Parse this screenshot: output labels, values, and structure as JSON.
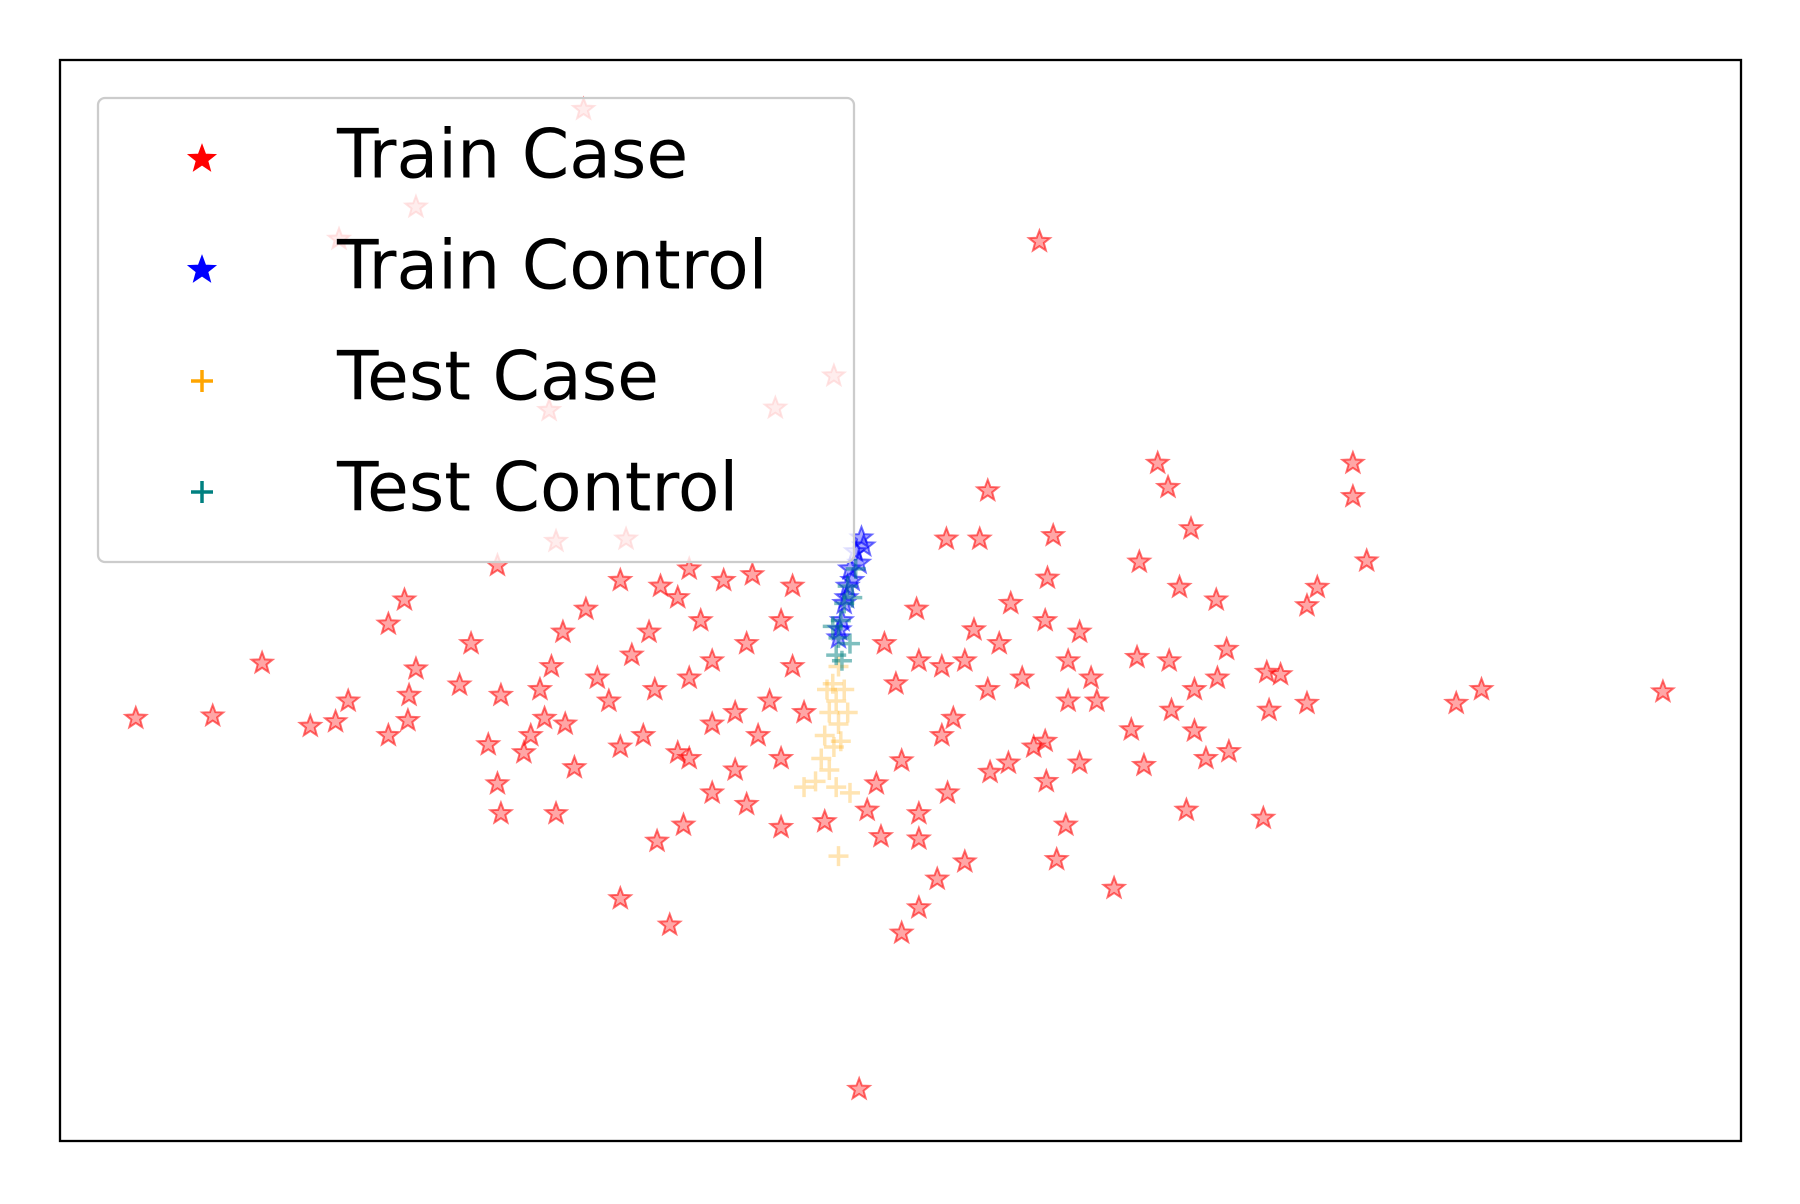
{
  "chart_data": {
    "type": "scatter",
    "xlim": [
      0,
      1464
    ],
    "ylim": [
      0,
      941
    ],
    "legend": "upper left",
    "series": [
      {
        "name": "Train Case",
        "color": "#ff0000",
        "marker": "star",
        "alpha": 0.35,
        "x": [
          456,
          310,
          243,
          853,
          674,
          623,
          426,
          956,
          1126,
          965,
          808,
          1126,
          985,
          865,
          772,
          801,
          493,
          432,
          381,
          940,
          1138,
          860,
          975,
          1095,
          1007,
          1086,
          300,
          286,
          176,
          66,
          133,
          218,
          240,
          251,
          286,
          303,
          304,
          310,
          348,
          358,
          384,
          373,
          381,
          384,
          404,
          410,
          432,
          422,
          440,
          448,
          428,
          438,
          458,
          488,
          523,
          548,
          578,
          603,
          638,
          628,
          598,
          568,
          548,
          518,
          498,
          478,
          488,
          508,
          538,
          548,
          568,
          588,
          608,
          628,
          648,
          638,
          618,
          588,
          568,
          598,
          628,
          666,
          703,
          715,
          748,
          748,
          788,
          764,
          748,
          733,
          531,
          488,
          520,
          543,
          918,
          868,
          876,
          859,
          810,
          826,
          888,
          944,
          981,
          1048,
          1018,
          998,
          988,
          968,
          933,
          903,
          878,
          848,
          858,
          808,
          788,
          768,
          796,
          828,
          858,
          888,
          878,
          898,
          938,
          966,
          1016,
          988,
          1008,
          1051,
          1063,
          1053,
          1086,
          1216,
          1238,
          1396,
          733,
          773,
          711,
          728,
          718,
          746,
          748,
          778,
          768,
          818,
          838,
          558,
          538,
          513,
          468,
          418,
          696
        ],
        "values": [
          898,
          813,
          785,
          783,
          666,
          638,
          636,
          590,
          590,
          569,
          566,
          561,
          533,
          527,
          524,
          524,
          524,
          522,
          501,
          504,
          505,
          490,
          482,
          482,
          471,
          466,
          471,
          450,
          416,
          368,
          370,
          361,
          365,
          383,
          353,
          366,
          388,
          411,
          397,
          433,
          388,
          345,
          311,
          285,
          338,
          353,
          285,
          368,
          363,
          325,
          413,
          443,
          463,
          488,
          483,
          498,
          488,
          493,
          483,
          453,
          433,
          418,
          403,
          393,
          423,
          383,
          343,
          353,
          338,
          333,
          363,
          373,
          353,
          333,
          373,
          413,
          383,
          323,
          303,
          293,
          273,
          278,
          288,
          265,
          285,
          263,
          243,
          228,
          203,
          181,
          188,
          211,
          261,
          275,
          220,
          245,
          275,
          313,
          321,
          329,
          329,
          327,
          288,
          281,
          339,
          333,
          357,
          375,
          358,
          383,
          383,
          343,
          348,
          393,
          418,
          413,
          445,
          468,
          453,
          443,
          418,
          403,
          421,
          418,
          428,
          393,
          403,
          408,
          406,
          375,
          381,
          381,
          393,
          391,
          331,
          303,
          311,
          398,
          433,
          463,
          418,
          368,
          353,
          433,
          403,
          453,
          473,
          443,
          403,
          393,
          45
        ]
      },
      {
        "name": "Train Control",
        "color": "#0000ff",
        "marker": "star",
        "alpha": 0.35,
        "x": [
          698,
          693,
          688,
          686,
          683,
          681,
          678,
          696,
          690,
          685,
          700,
          679
        ],
        "values": [
          525,
          513,
          498,
          483,
          468,
          453,
          438,
          503,
          488,
          473,
          518,
          445
        ]
      },
      {
        "name": "Test Case",
        "color": "#ffa500",
        "marker": "plus",
        "alpha": 0.3,
        "x": [
          678,
          673,
          676,
          670,
          678,
          666,
          674,
          663,
          670,
          658,
          683,
          680,
          688,
          648,
          678,
          676,
          668,
          686
        ],
        "values": [
          413,
          398,
          383,
          373,
          363,
          353,
          343,
          333,
          323,
          313,
          393,
          348,
          303,
          308,
          248,
          308,
          393,
          373
        ]
      },
      {
        "name": "Test Control",
        "color": "#008080",
        "marker": "plus",
        "alpha": 0.5,
        "x": [
          693,
          686,
          683,
          680,
          678,
          676,
          688,
          673,
          690,
          681
        ],
        "values": [
          498,
          483,
          468,
          453,
          438,
          423,
          433,
          448,
          473,
          418
        ]
      }
    ]
  }
}
